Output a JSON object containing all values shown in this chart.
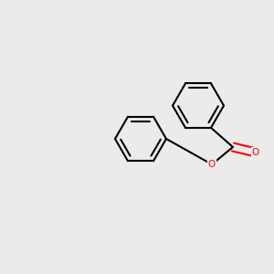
{
  "bg_color": "#ebebeb",
  "bond_color": "#000000",
  "oxygen_color": "#ff0000",
  "lw": 1.5,
  "lw_heavy": 1.5,
  "figsize": [
    3.0,
    3.0
  ],
  "dpi": 100,
  "xlim": [
    0,
    300
  ],
  "ylim": [
    0,
    300
  ],
  "bl": 28
}
